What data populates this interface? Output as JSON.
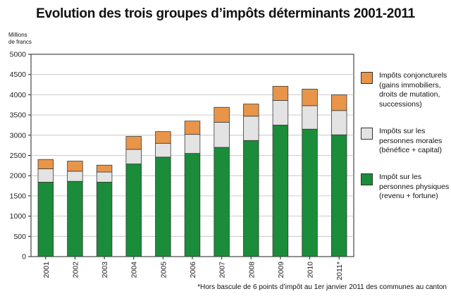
{
  "title": "Evolution des trois groupes d’impôts déterminants 2001-2011",
  "y_unit": [
    "Millions",
    "de francs"
  ],
  "footnote": "*Hors bascule de 6 points d’impôt au 1er janvier 2011 des communes au canton",
  "colors": {
    "physiques": "#1a8c3a",
    "morales": "#e3e3e3",
    "conjoncturels": "#e8954a"
  },
  "legend": [
    {
      "key": "conjoncturels",
      "lines": [
        "Impôts conjoncturels",
        "(gains immobiliers,",
        "droits de mutation,",
        "successions)"
      ]
    },
    {
      "key": "morales",
      "lines": [
        "Impôts sur les",
        "personnes morales",
        "(bénéfice + capital)"
      ]
    },
    {
      "key": "physiques",
      "lines": [
        "Impôt sur les",
        "personnes physiques",
        "(revenu + fortune)"
      ]
    }
  ],
  "chart_data": {
    "type": "bar",
    "stacked": true,
    "categories": [
      "2001",
      "2002",
      "2003",
      "2004",
      "2005",
      "2006",
      "2007",
      "2008",
      "2009",
      "2010",
      "2011*"
    ],
    "series": [
      {
        "name": "Impôt sur les personnes physiques (revenu + fortune)",
        "key": "physiques",
        "values": [
          1840,
          1860,
          1840,
          2290,
          2460,
          2550,
          2700,
          2870,
          3250,
          3150,
          3010
        ]
      },
      {
        "name": "Impôts sur les personnes morales (bénéfice + capital)",
        "key": "morales",
        "values": [
          330,
          250,
          250,
          360,
          340,
          470,
          620,
          600,
          610,
          580,
          600
        ]
      },
      {
        "name": "Impôts conjoncturels (gains immobiliers, droits de mutation, successions)",
        "key": "conjoncturels",
        "values": [
          230,
          250,
          170,
          320,
          290,
          330,
          370,
          300,
          350,
          410,
          390
        ]
      }
    ],
    "ylim": [
      0,
      5000
    ],
    "yticks": [
      0,
      500,
      1000,
      1500,
      2000,
      2500,
      3000,
      3500,
      4000,
      4500,
      5000
    ],
    "grid": true,
    "legend_position": "right"
  }
}
